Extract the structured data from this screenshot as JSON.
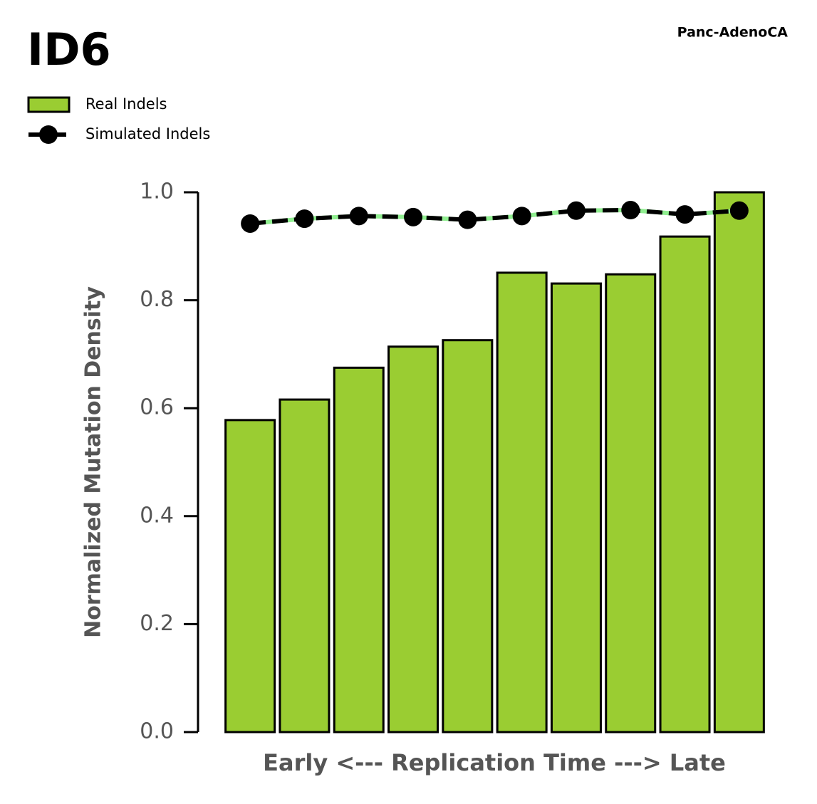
{
  "chart_data": {
    "type": "bar_line",
    "title": "ID6",
    "subtitle": "Panc-AdenoCA",
    "ylabel": "Normalized Mutation Density",
    "xlabel": "Early <--- Replication Time ---> Late",
    "categories": [
      null,
      null,
      null,
      null,
      null,
      null,
      null,
      null,
      null,
      null
    ],
    "series": [
      {
        "name": "Real Indels",
        "type": "bar",
        "color": "#9acd32",
        "edge_color": "#000000",
        "values": [
          0.578,
          0.616,
          0.675,
          0.714,
          0.726,
          0.851,
          0.831,
          0.848,
          0.918,
          1.0
        ]
      },
      {
        "name": "Simulated Indels",
        "type": "line",
        "color": "#000000",
        "dash_color": "#90ee90",
        "values": [
          0.942,
          0.951,
          0.956,
          0.954,
          0.949,
          0.956,
          0.966,
          0.967,
          0.959,
          0.966
        ]
      }
    ],
    "ylim": [
      0,
      1
    ],
    "yticks": [
      {
        "value": 0,
        "label": "0.0"
      },
      0.2,
      0.4,
      0.6,
      0.8,
      {
        "value": 1,
        "label": "1.0"
      }
    ],
    "legend": "top-left",
    "grid": false
  }
}
